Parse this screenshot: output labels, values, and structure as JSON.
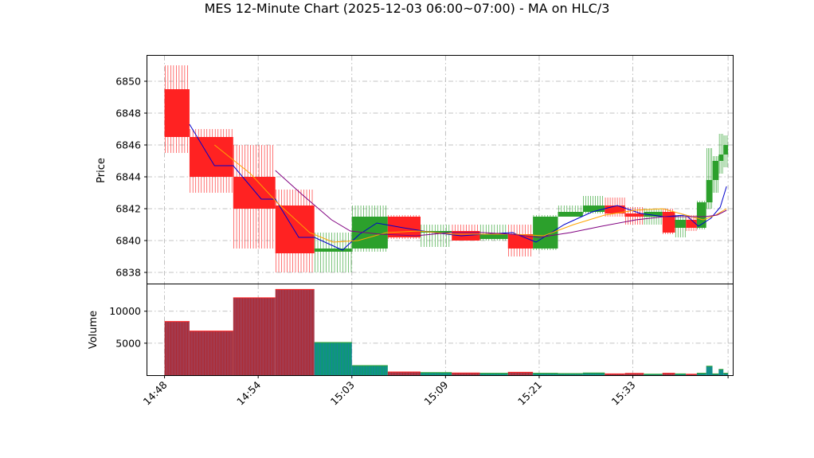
{
  "chart_data": {
    "type": "candlestick",
    "title": "MES 12-Minute Chart (2025-12-03 06:00~07:00) - MA on HLC/3",
    "price_axis": {
      "ylabel": "Price",
      "ylim": [
        6837.3,
        6851.6
      ],
      "ticks": [
        6838,
        6840,
        6842,
        6844,
        6846,
        6848,
        6850
      ]
    },
    "volume_axis": {
      "ylabel": "Volume",
      "ylim": [
        0,
        14200
      ],
      "ticks": [
        5000,
        10000
      ],
      "tick_labels": [
        "5000",
        "10000"
      ]
    },
    "x_axis": {
      "tick_labels": [
        "14:48",
        "14:54",
        "15:03",
        "15:09",
        "15:21",
        "15:33"
      ],
      "tick_positions": [
        0,
        6,
        12,
        18,
        24,
        30
      ],
      "xlim": [
        -1.1,
        36.4
      ]
    },
    "grid": true,
    "bars": [
      {
        "o": 6849.5,
        "h": 6851.0,
        "l": 6845.5,
        "c": 6846.5,
        "v": 8400
      },
      {
        "o": 6846.5,
        "h": 6847.0,
        "l": 6843.0,
        "c": 6844.0,
        "v": 6900
      },
      {
        "o": 6844.0,
        "h": 6846.0,
        "l": 6839.5,
        "c": 6842.0,
        "v": 12100
      },
      {
        "o": 6842.2,
        "h": 6843.2,
        "l": 6838.0,
        "c": 6839.2,
        "v": 13400
      },
      {
        "o": 6839.3,
        "h": 6840.5,
        "l": 6838.0,
        "c": 6839.5,
        "v": 5100
      },
      {
        "o": 6839.5,
        "h": 6842.2,
        "l": 6839.3,
        "c": 6841.5,
        "v": 1500
      },
      {
        "o": 6841.5,
        "h": 6841.6,
        "l": 6840.1,
        "c": 6840.2,
        "v": 500
      },
      {
        "o": 6840.5,
        "h": 6841.0,
        "l": 6839.6,
        "c": 6840.6,
        "v": 400
      },
      {
        "o": 6840.6,
        "h": 6841.0,
        "l": 6840.0,
        "c": 6840.0,
        "v": 350
      },
      {
        "o": 6840.1,
        "h": 6841.0,
        "l": 6840.0,
        "c": 6840.4,
        "v": 300
      },
      {
        "o": 6840.4,
        "h": 6841.0,
        "l": 6839.0,
        "c": 6839.5,
        "v": 450
      },
      {
        "o": 6839.5,
        "h": 6841.6,
        "l": 6839.4,
        "c": 6841.5,
        "v": 300
      },
      {
        "o": 6841.5,
        "h": 6842.2,
        "l": 6841.5,
        "c": 6841.8,
        "v": 250
      },
      {
        "o": 6841.8,
        "h": 6842.8,
        "l": 6841.7,
        "c": 6842.2,
        "v": 350
      },
      {
        "o": 6842.2,
        "h": 6842.7,
        "l": 6841.5,
        "c": 6841.7,
        "v": 200
      },
      {
        "o": 6841.7,
        "h": 6842.1,
        "l": 6841.0,
        "c": 6841.5,
        "v": 280
      },
      {
        "o": 6841.5,
        "h": 6842.0,
        "l": 6841.0,
        "c": 6841.8,
        "v": 150
      },
      {
        "o": 6841.8,
        "h": 6842.0,
        "l": 6840.4,
        "c": 6840.5,
        "v": 300
      },
      {
        "o": 6840.8,
        "h": 6841.6,
        "l": 6840.2,
        "c": 6841.3,
        "v": 200
      },
      {
        "o": 6841.3,
        "h": 6841.6,
        "l": 6840.6,
        "c": 6840.8,
        "v": 150
      },
      {
        "o": 6840.8,
        "h": 6842.5,
        "l": 6840.7,
        "c": 6842.4,
        "v": 300
      },
      {
        "o": 6842.4,
        "h": 6845.8,
        "l": 6842.0,
        "c": 6843.8,
        "v": 1400
      },
      {
        "o": 6843.8,
        "h": 6845.3,
        "l": 6843.0,
        "c": 6845.0,
        "v": 200
      },
      {
        "o": 6845.0,
        "h": 6846.7,
        "l": 6844.2,
        "c": 6845.4,
        "v": 900
      },
      {
        "o": 6845.4,
        "h": 6846.6,
        "l": 6844.6,
        "c": 6846.0,
        "v": 300
      }
    ],
    "bar_spans": [
      [
        0,
        1.6
      ],
      [
        1.6,
        4.4
      ],
      [
        4.4,
        7.1
      ],
      [
        7.1,
        9.6
      ],
      [
        9.6,
        12.0
      ],
      [
        12.0,
        14.3
      ],
      [
        14.3,
        16.4
      ],
      [
        16.4,
        18.4
      ],
      [
        18.4,
        20.2
      ],
      [
        20.2,
        22.0
      ],
      [
        22.0,
        23.6
      ],
      [
        23.6,
        25.2
      ],
      [
        25.2,
        26.8
      ],
      [
        26.8,
        28.2
      ],
      [
        28.2,
        29.5
      ],
      [
        29.5,
        30.7
      ],
      [
        30.7,
        31.9
      ],
      [
        31.9,
        32.7
      ],
      [
        32.7,
        33.4
      ],
      [
        33.4,
        34.1
      ],
      [
        34.1,
        34.7
      ],
      [
        34.7,
        35.1
      ],
      [
        35.1,
        35.5
      ],
      [
        35.5,
        35.8
      ],
      [
        35.8,
        36.1
      ]
    ],
    "ma_lines": [
      {
        "color": "#0000cc",
        "points": [
          [
            1.6,
            6847.3
          ],
          [
            3.2,
            6844.7
          ],
          [
            4.4,
            6844.7
          ],
          [
            6.2,
            6842.6
          ],
          [
            7.1,
            6842.6
          ],
          [
            8.6,
            6840.2
          ],
          [
            9.6,
            6840.2
          ],
          [
            11.4,
            6839.4
          ],
          [
            12.5,
            6840.4
          ],
          [
            13.6,
            6841.1
          ],
          [
            15.3,
            6840.8
          ],
          [
            17.2,
            6840.5
          ],
          [
            19.0,
            6840.3
          ],
          [
            20.5,
            6840.4
          ],
          [
            22.3,
            6840.5
          ],
          [
            23.8,
            6839.9
          ],
          [
            25.6,
            6841.0
          ],
          [
            27.4,
            6841.8
          ],
          [
            29.0,
            6842.2
          ],
          [
            30.5,
            6841.7
          ],
          [
            32.0,
            6841.5
          ],
          [
            33.4,
            6841.6
          ],
          [
            34.2,
            6840.9
          ],
          [
            35.0,
            6841.4
          ],
          [
            35.6,
            6842.1
          ],
          [
            36.0,
            6843.4
          ]
        ]
      },
      {
        "color": "#ffa500",
        "points": [
          [
            3.2,
            6846.0
          ],
          [
            5.5,
            6844.2
          ],
          [
            7.3,
            6842.3
          ],
          [
            9.3,
            6840.5
          ],
          [
            10.8,
            6839.9
          ],
          [
            12.4,
            6840.0
          ],
          [
            14.2,
            6840.5
          ],
          [
            16.3,
            6840.6
          ],
          [
            18.5,
            6840.4
          ],
          [
            20.5,
            6840.4
          ],
          [
            22.4,
            6840.4
          ],
          [
            24.3,
            6840.3
          ],
          [
            26.2,
            6841.0
          ],
          [
            28.2,
            6841.6
          ],
          [
            30.1,
            6841.9
          ],
          [
            31.9,
            6842.0
          ],
          [
            33.4,
            6841.6
          ],
          [
            34.5,
            6841.3
          ],
          [
            35.3,
            6841.6
          ],
          [
            36.0,
            6842.0
          ]
        ]
      },
      {
        "color": "#800080",
        "points": [
          [
            7.1,
            6844.4
          ],
          [
            8.8,
            6842.9
          ],
          [
            10.7,
            6841.3
          ],
          [
            11.9,
            6840.6
          ],
          [
            13.8,
            6840.4
          ],
          [
            16.1,
            6840.3
          ],
          [
            18.3,
            6840.5
          ],
          [
            20.4,
            6840.5
          ],
          [
            22.2,
            6840.4
          ],
          [
            24.0,
            6840.2
          ],
          [
            26.0,
            6840.5
          ],
          [
            28.0,
            6840.9
          ],
          [
            30.2,
            6841.3
          ],
          [
            32.0,
            6841.5
          ],
          [
            33.5,
            6841.5
          ],
          [
            34.6,
            6841.5
          ],
          [
            35.4,
            6841.6
          ],
          [
            36.0,
            6841.9
          ]
        ]
      }
    ],
    "colors": {
      "up": "#2ca02c",
      "down": "#ff2222",
      "volume_up_stripe": "#1f77b4",
      "volume_down_stripe": "#b22222",
      "volume_up_fill": "#0d9a76",
      "volume_down_fill": "#a43a4e",
      "grid": "#b0b0b0"
    }
  }
}
